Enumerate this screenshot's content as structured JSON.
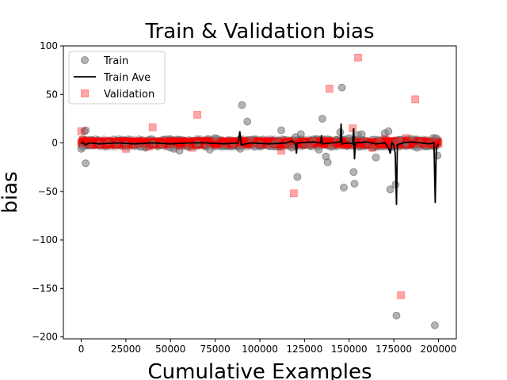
{
  "chart_data": {
    "type": "scatter",
    "title": "Train & Validation bias",
    "xlabel": "Cumulative Examples",
    "ylabel": "bias",
    "xlim": [
      -10000,
      210000
    ],
    "ylim": [
      -202,
      100
    ],
    "xticks": [
      0,
      25000,
      50000,
      75000,
      100000,
      125000,
      150000,
      175000,
      200000
    ],
    "yticks": [
      100,
      50,
      0,
      -50,
      -100,
      -150,
      -200
    ],
    "grid": false,
    "legend": {
      "placement": "top-left",
      "entries": [
        "Train",
        "Train Ave",
        "Validation"
      ]
    },
    "series": [
      {
        "name": "Train",
        "kind": "scatter",
        "marker": "circle",
        "color": "#808080",
        "points": [
          [
            0,
            -6
          ],
          [
            1000,
            -4
          ],
          [
            1800,
            12
          ],
          [
            2500,
            13
          ],
          [
            2500,
            -21
          ],
          [
            5000,
            -2
          ],
          [
            10000,
            -1
          ],
          [
            15000,
            0
          ],
          [
            20000,
            -1
          ],
          [
            25000,
            -2
          ],
          [
            30000,
            -3
          ],
          [
            33000,
            -4
          ],
          [
            36000,
            -5
          ],
          [
            40000,
            -1
          ],
          [
            45000,
            -2
          ],
          [
            50000,
            -5
          ],
          [
            52000,
            -6
          ],
          [
            55000,
            -8
          ],
          [
            60000,
            -4
          ],
          [
            65000,
            -1
          ],
          [
            70000,
            -2
          ],
          [
            72000,
            -7
          ],
          [
            75000,
            5
          ],
          [
            80000,
            -3
          ],
          [
            85000,
            -2
          ],
          [
            89000,
            -6
          ],
          [
            90000,
            39
          ],
          [
            93000,
            22
          ],
          [
            95000,
            3
          ],
          [
            97000,
            -4
          ],
          [
            100000,
            -1
          ],
          [
            105000,
            -3
          ],
          [
            108000,
            -1
          ],
          [
            110000,
            2
          ],
          [
            112000,
            13
          ],
          [
            115000,
            -1
          ],
          [
            118000,
            -5
          ],
          [
            120000,
            6
          ],
          [
            121000,
            -35
          ],
          [
            123000,
            9
          ],
          [
            125000,
            -1
          ],
          [
            128000,
            -3
          ],
          [
            130000,
            2
          ],
          [
            133000,
            -7
          ],
          [
            135000,
            25
          ],
          [
            137000,
            -14
          ],
          [
            138000,
            -20
          ],
          [
            140000,
            -4
          ],
          [
            143000,
            3
          ],
          [
            145000,
            11
          ],
          [
            146000,
            57
          ],
          [
            147000,
            -46
          ],
          [
            150000,
            5
          ],
          [
            152000,
            1
          ],
          [
            152500,
            -30
          ],
          [
            153000,
            -42
          ],
          [
            155000,
            8
          ],
          [
            157000,
            9
          ],
          [
            158000,
            3
          ],
          [
            160000,
            -1
          ],
          [
            163000,
            -5
          ],
          [
            165000,
            -15
          ],
          [
            167000,
            2
          ],
          [
            170000,
            10
          ],
          [
            172000,
            12
          ],
          [
            173000,
            -48
          ],
          [
            175000,
            0
          ],
          [
            176000,
            -43
          ],
          [
            176500,
            -178
          ],
          [
            178000,
            3
          ],
          [
            182000,
            -1
          ],
          [
            185000,
            4
          ],
          [
            188000,
            -5
          ],
          [
            190000,
            1
          ],
          [
            193000,
            -3
          ],
          [
            195000,
            0
          ],
          [
            197000,
            5
          ],
          [
            198000,
            -188
          ],
          [
            198500,
            5
          ],
          [
            199500,
            -13
          ]
        ]
      },
      {
        "name": "Train Ave",
        "kind": "line",
        "color": "#000000",
        "points": [
          [
            0,
            -1
          ],
          [
            1000,
            1
          ],
          [
            2000,
            -2
          ],
          [
            5000,
            0
          ],
          [
            10000,
            -1
          ],
          [
            20000,
            0
          ],
          [
            30000,
            -1
          ],
          [
            40000,
            0
          ],
          [
            50000,
            -1
          ],
          [
            60000,
            0
          ],
          [
            70000,
            0
          ],
          [
            80000,
            -1
          ],
          [
            88000,
            0
          ],
          [
            88800,
            12
          ],
          [
            89600,
            -2
          ],
          [
            95000,
            0
          ],
          [
            105000,
            -1
          ],
          [
            115000,
            0
          ],
          [
            118000,
            2
          ],
          [
            120000,
            -1
          ],
          [
            120500,
            -11
          ],
          [
            121000,
            0
          ],
          [
            130000,
            1
          ],
          [
            134000,
            0
          ],
          [
            134500,
            8
          ],
          [
            135000,
            -1
          ],
          [
            140000,
            0
          ],
          [
            145000,
            1
          ],
          [
            145500,
            20
          ],
          [
            146000,
            -1
          ],
          [
            150000,
            0
          ],
          [
            152000,
            -1
          ],
          [
            152500,
            15
          ],
          [
            153000,
            -17
          ],
          [
            153500,
            0
          ],
          [
            160000,
            1
          ],
          [
            165000,
            -1
          ],
          [
            170000,
            0
          ],
          [
            172000,
            -5
          ],
          [
            173000,
            -11
          ],
          [
            174000,
            0
          ],
          [
            175000,
            -2
          ],
          [
            175800,
            -11
          ],
          [
            176500,
            -64
          ],
          [
            177000,
            -2
          ],
          [
            180000,
            0
          ],
          [
            185000,
            1
          ],
          [
            190000,
            0
          ],
          [
            195000,
            -1
          ],
          [
            197500,
            0
          ],
          [
            198200,
            -62
          ],
          [
            198800,
            -5
          ],
          [
            200000,
            -1
          ]
        ]
      },
      {
        "name": "Validation",
        "kind": "scatter",
        "marker": "square",
        "color": "#ff0000",
        "points": [
          [
            0,
            12
          ],
          [
            1000,
            3
          ],
          [
            2000,
            0
          ],
          [
            5000,
            -1
          ],
          [
            10000,
            0
          ],
          [
            15000,
            1
          ],
          [
            20000,
            -2
          ],
          [
            25000,
            -6
          ],
          [
            30000,
            -1
          ],
          [
            35000,
            0
          ],
          [
            38000,
            -4
          ],
          [
            40000,
            16
          ],
          [
            45000,
            0
          ],
          [
            50000,
            -1
          ],
          [
            55000,
            -3
          ],
          [
            60000,
            0
          ],
          [
            62000,
            -5
          ],
          [
            65000,
            29
          ],
          [
            70000,
            2
          ],
          [
            72000,
            1
          ],
          [
            75000,
            -1
          ],
          [
            80000,
            0
          ],
          [
            85000,
            -1
          ],
          [
            90000,
            2
          ],
          [
            95000,
            0
          ],
          [
            100000,
            -1
          ],
          [
            105000,
            0
          ],
          [
            110000,
            1
          ],
          [
            112000,
            -8
          ],
          [
            115000,
            0
          ],
          [
            119000,
            -52
          ],
          [
            122000,
            1
          ],
          [
            125000,
            0
          ],
          [
            130000,
            -1
          ],
          [
            134000,
            2
          ],
          [
            136000,
            0
          ],
          [
            139000,
            56
          ],
          [
            142000,
            1
          ],
          [
            145000,
            0
          ],
          [
            148000,
            -2
          ],
          [
            152000,
            15
          ],
          [
            155000,
            88
          ],
          [
            157000,
            1
          ],
          [
            160000,
            -1
          ],
          [
            163000,
            -5
          ],
          [
            167000,
            0
          ],
          [
            170000,
            4
          ],
          [
            173000,
            -1
          ],
          [
            176000,
            2
          ],
          [
            179000,
            -157
          ],
          [
            182000,
            5
          ],
          [
            185000,
            0
          ],
          [
            187000,
            45
          ],
          [
            190000,
            1
          ],
          [
            193000,
            -1
          ],
          [
            195000,
            0
          ],
          [
            198000,
            1
          ],
          [
            200000,
            -1
          ]
        ]
      }
    ],
    "dense_band": {
      "x_start": 0,
      "x_end": 200000,
      "train_jitter": 4,
      "train_density": 900,
      "validation_jitter": 2,
      "validation_density": 700,
      "line_jitter": 1.5,
      "line_density": 600
    }
  }
}
